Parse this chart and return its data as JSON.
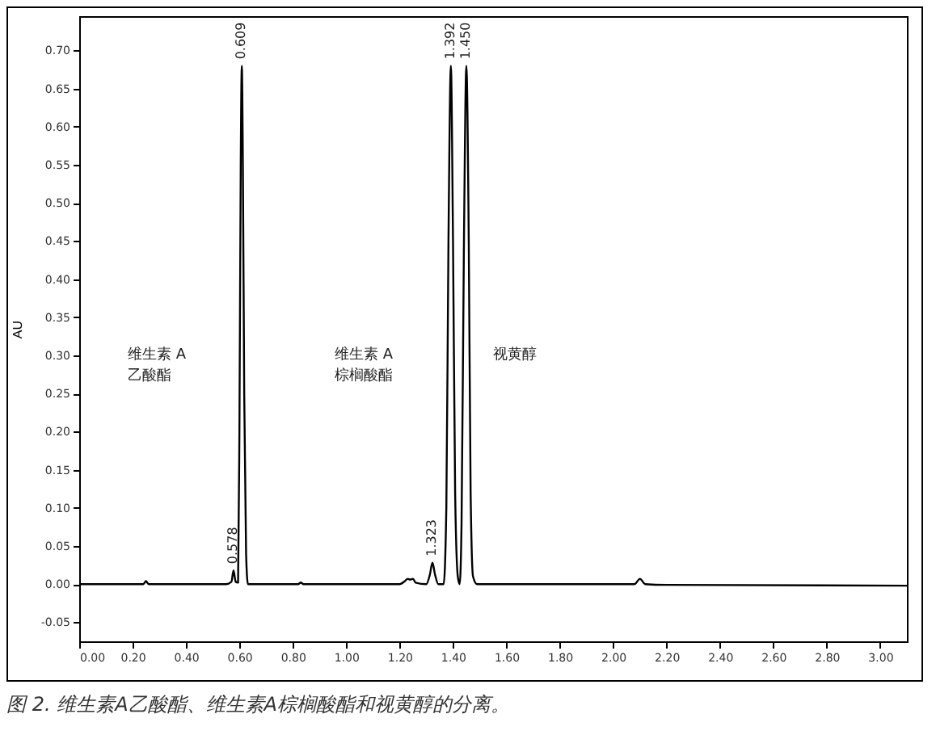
{
  "chart_data": {
    "type": "line",
    "ylabel": "AU",
    "x": [
      0,
      0.24,
      0.25,
      0.26,
      0.55,
      0.57,
      0.578,
      0.586,
      0.595,
      0.6,
      0.605,
      0.609,
      0.613,
      0.618,
      0.625,
      0.632,
      0.65,
      0.82,
      0.83,
      0.84,
      1.2,
      1.22,
      1.23,
      1.24,
      1.25,
      1.26,
      1.3,
      1.313,
      1.323,
      1.333,
      1.345,
      1.365,
      1.375,
      1.383,
      1.392,
      1.4,
      1.408,
      1.418,
      1.425,
      1.432,
      1.441,
      1.45,
      1.459,
      1.466,
      1.475,
      1.49,
      2.0,
      2.08,
      2.1,
      2.12,
      2.2,
      3.1
    ],
    "series": [
      {
        "color": "#000000",
        "values": [
          0,
          0,
          0.004,
          0,
          0,
          0.003,
          0.018,
          0.003,
          0.002,
          0.2,
          0.55,
          0.68,
          0.55,
          0.25,
          0.04,
          0,
          0,
          0,
          0.002,
          0,
          0,
          0.004,
          0.007,
          0.006,
          0.007,
          0.002,
          0,
          0.012,
          0.028,
          0.012,
          0,
          0,
          0.1,
          0.45,
          0.68,
          0.45,
          0.12,
          0.01,
          0,
          0.08,
          0.45,
          0.68,
          0.45,
          0.12,
          0.01,
          0,
          0,
          0,
          0.007,
          0,
          -0.001,
          -0.002
        ]
      }
    ],
    "xlim": [
      0,
      3.1
    ],
    "xticks": [
      {
        "value": 0,
        "label": "0.00"
      },
      {
        "value": 0.2,
        "label": "0.20"
      },
      {
        "value": 0.4,
        "label": "0.40"
      },
      {
        "value": 0.6,
        "label": "0.60"
      },
      {
        "value": 0.8,
        "label": "0.80"
      },
      {
        "value": 1,
        "label": "1.00"
      },
      {
        "value": 1.2,
        "label": "1.20"
      },
      {
        "value": 1.4,
        "label": "1.40"
      },
      {
        "value": 1.6,
        "label": "1.60"
      },
      {
        "value": 1.8,
        "label": "1.80"
      },
      {
        "value": 2,
        "label": "2.00"
      },
      {
        "value": 2.2,
        "label": "2.20"
      },
      {
        "value": 2.4,
        "label": "2.40"
      },
      {
        "value": 2.6,
        "label": "2.60"
      },
      {
        "value": 2.8,
        "label": "2.80"
      },
      {
        "value": 3,
        "label": "3.00"
      }
    ],
    "ylim": [
      -0.075,
      0.745
    ],
    "yticks": [
      {
        "value": -0.05,
        "label": "-0.05"
      },
      {
        "value": 0,
        "label": "0.00"
      },
      {
        "value": 0.05,
        "label": "0.05"
      },
      {
        "value": 0.1,
        "label": "0.10"
      },
      {
        "value": 0.15,
        "label": "0.15"
      },
      {
        "value": 0.2,
        "label": "0.20"
      },
      {
        "value": 0.25,
        "label": "0.25"
      },
      {
        "value": 0.3,
        "label": "0.30"
      },
      {
        "value": 0.35,
        "label": "0.35"
      },
      {
        "value": 0.4,
        "label": "0.40"
      },
      {
        "value": 0.45,
        "label": "0.45"
      },
      {
        "value": 0.5,
        "label": "0.50"
      },
      {
        "value": 0.55,
        "label": "0.55"
      },
      {
        "value": 0.6,
        "label": "0.60"
      },
      {
        "value": 0.65,
        "label": "0.65"
      },
      {
        "value": 0.7,
        "label": "0.70"
      }
    ],
    "annotations": [
      {
        "text": "0.578",
        "x": 0.578,
        "y": 0.018
      },
      {
        "text": "0.609",
        "x": 0.609,
        "y": 0.68
      },
      {
        "text": "1.323",
        "x": 1.323,
        "y": 0.028
      },
      {
        "text": "1.392",
        "x": 1.392,
        "y": 0.68
      },
      {
        "text": "1.450",
        "x": 1.45,
        "y": 0.68
      },
      "维生素 A\n乙酸酯",
      "维生素 A\n棕榈酸酯",
      "视黄醇",
      "图 2. 维生素A乙酸酯、维生素A棕榈酸酯和视黄醇的分离。"
    ],
    "grid": false,
    "marker": "none",
    "line_style": "solid"
  }
}
